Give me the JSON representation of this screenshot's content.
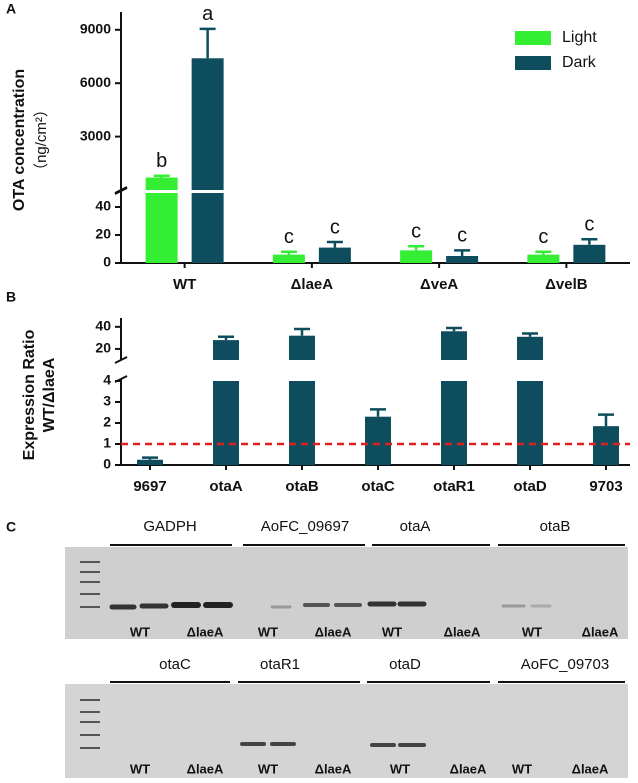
{
  "panel_labels": [
    "A",
    "B",
    "C"
  ],
  "chart_data": [
    {
      "type": "bar",
      "ylabel": [
        "OTA concentration",
        "（ng/cm²）"
      ],
      "categories": [
        "WT",
        "ΔlaeA",
        "ΔveA",
        "ΔvelB"
      ],
      "series": [
        {
          "name": "Light",
          "color": "#33ee33",
          "values": [
            700,
            6,
            9,
            6
          ],
          "errors": [
            100,
            2,
            3,
            2
          ],
          "letters": [
            "b",
            "c",
            "c",
            "c"
          ]
        },
        {
          "name": "Dark",
          "color": "#0e4d5e",
          "values": [
            7400,
            11,
            5,
            13
          ],
          "errors": [
            1650,
            4,
            4,
            4
          ],
          "letters": [
            "a",
            "c",
            "c",
            "c"
          ]
        }
      ],
      "ylim": [
        0,
        50
      ],
      "yticks": [
        0,
        20,
        40
      ],
      "axis_break": {
        "ylim": [
          0,
          10000
        ],
        "yticks": [
          3000,
          6000,
          9000
        ]
      },
      "legend": "upper right"
    },
    {
      "type": "bar",
      "ylabel": [
        "Expression Ratio",
        "WT/ΔlaeA"
      ],
      "categories": [
        "9697",
        "otaA",
        "otaB",
        "otaC",
        "otaR1",
        "otaD",
        "9703"
      ],
      "series": [
        {
          "color": "#0e4d5e",
          "values": [
            0.25,
            28,
            32,
            2.3,
            36,
            31,
            1.85
          ],
          "errors": [
            0.1,
            3,
            6,
            0.35,
            3,
            3,
            0.55
          ]
        }
      ],
      "ylim": [
        0,
        4
      ],
      "yticks": [
        0,
        1,
        2,
        3,
        4
      ],
      "axis_break": {
        "ylim": [
          10,
          48
        ],
        "yticks": [
          20,
          40
        ]
      },
      "reference_line": {
        "value": 1,
        "color": "#e02020"
      }
    }
  ],
  "gel": {
    "rows": [
      {
        "genes": [
          "GADPH",
          "AoFC_09697",
          "otaA",
          "otaB"
        ],
        "lanes": [
          "WT",
          "ΔlaeA",
          "WT",
          "ΔlaeA",
          "WT",
          "ΔlaeA",
          "WT",
          "ΔlaeA"
        ]
      },
      {
        "genes": [
          "otaC",
          "otaR1",
          "otaD",
          "AoFC_09703"
        ],
        "lanes": [
          "WT",
          "ΔlaeA",
          "WT",
          "ΔlaeA",
          "WT",
          "ΔlaeA",
          "WT",
          "ΔlaeA"
        ]
      }
    ]
  }
}
